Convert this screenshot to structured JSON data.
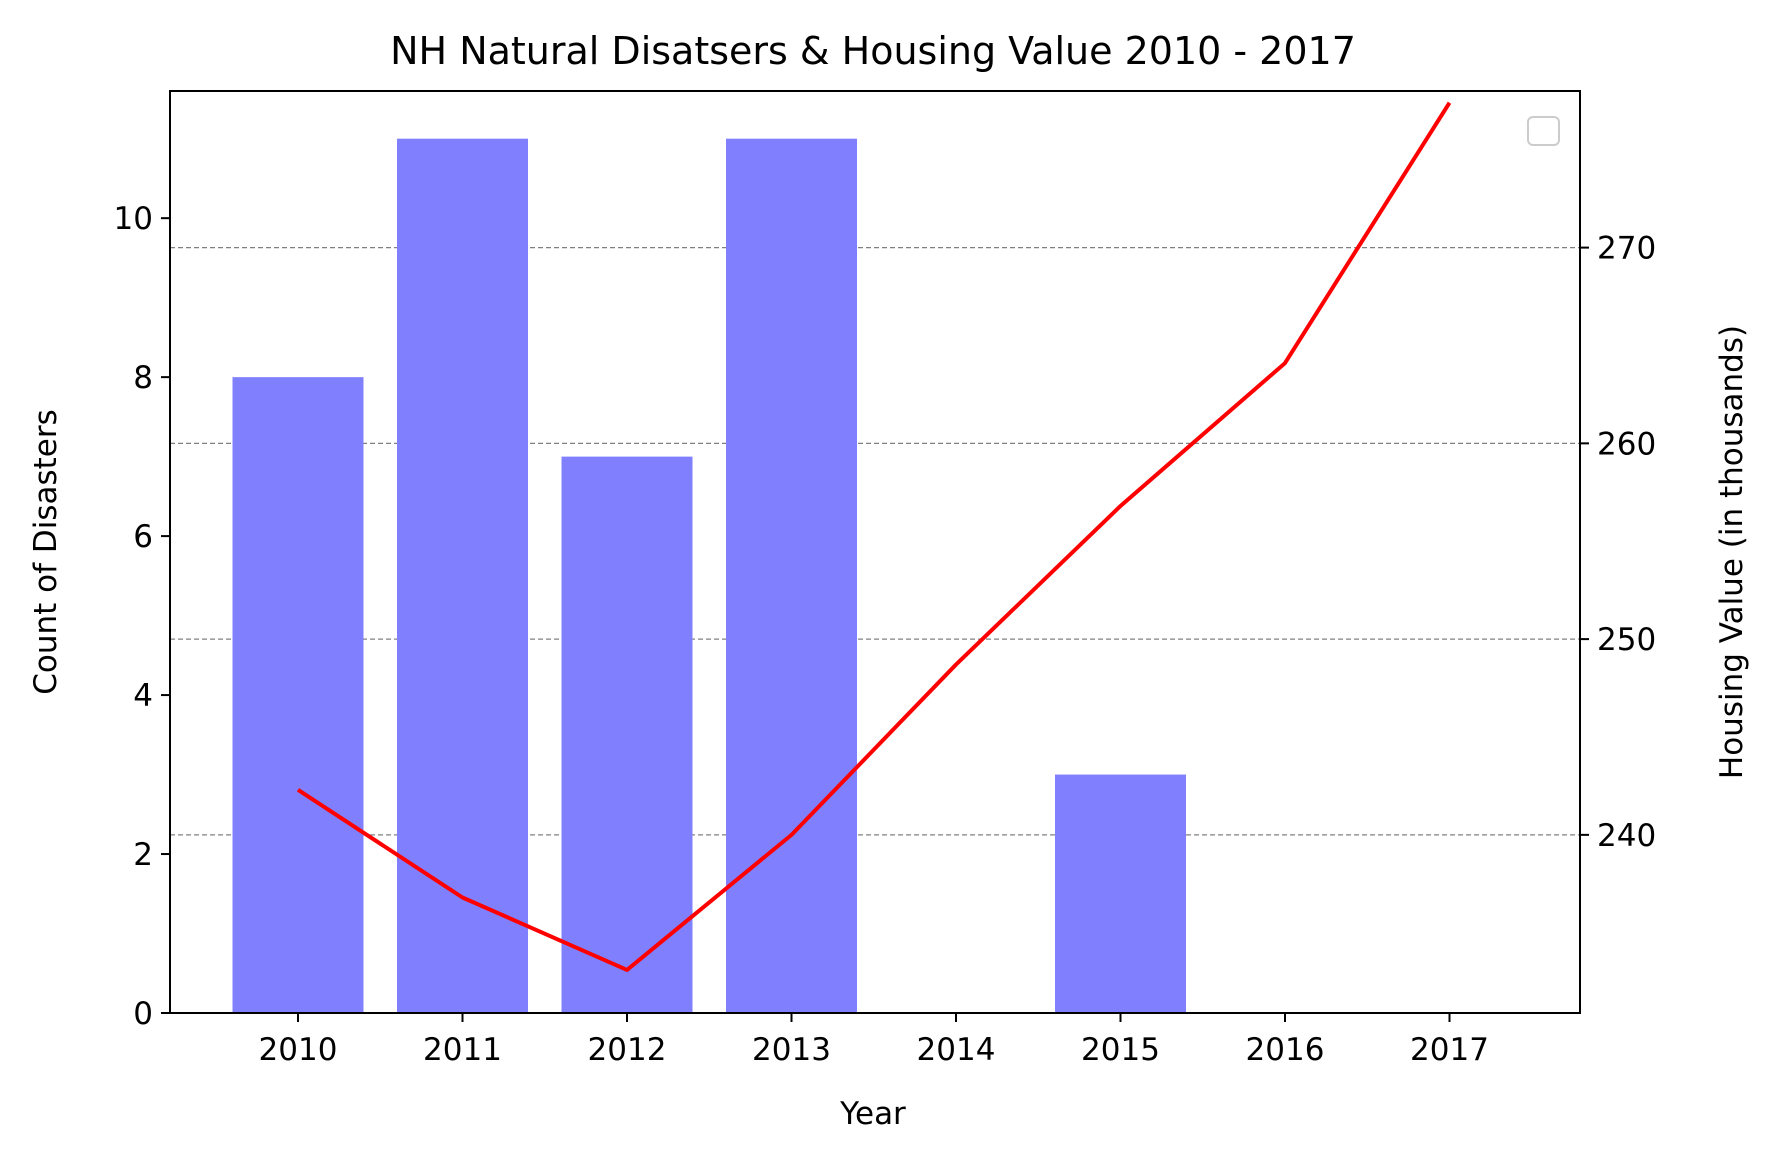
{
  "chart_data": {
    "type": "bar+line",
    "title": "NH Natural Disatsers & Housing Value 2010 - 2017",
    "xlabel": "Year",
    "ylabel": "Count of Disasters",
    "y2label": "Housing Value (in thousands)",
    "categories": [
      "2010",
      "2011",
      "2012",
      "2013",
      "2014",
      "2015",
      "2016",
      "2017"
    ],
    "series": [
      {
        "axis": "left",
        "kind": "bar",
        "color": "#8080ff",
        "values": [
          8,
          11,
          7,
          11,
          0,
          3,
          0,
          0
        ]
      },
      {
        "axis": "right",
        "kind": "line",
        "color": "#ff0000",
        "values": [
          242.3,
          236.8,
          233.1,
          240.0,
          248.7,
          256.8,
          264.1,
          277.4
        ]
      }
    ],
    "ylim": [
      0,
      11.6
    ],
    "y2lim": [
      230.9,
      278.0
    ],
    "yticks": [
      0,
      2,
      4,
      6,
      8,
      10
    ],
    "y2ticks": [
      240,
      250,
      260,
      270
    ],
    "grid": {
      "axis": "right-y",
      "style": "dashed",
      "color": "#808080"
    },
    "legend": {
      "placement": "upper right",
      "entries": []
    }
  }
}
